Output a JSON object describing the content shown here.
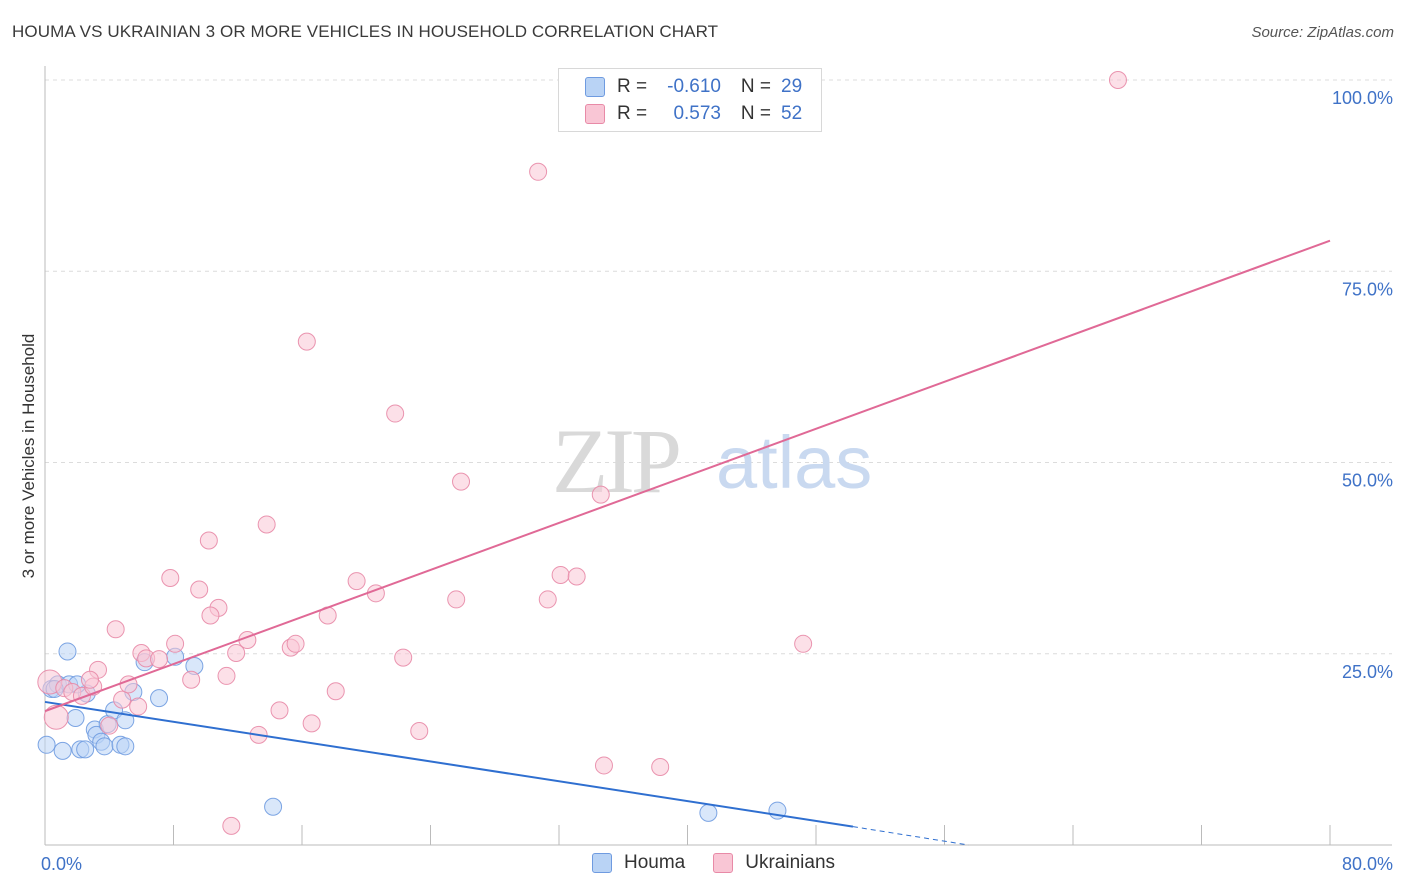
{
  "title": "HOUMA VS UKRAINIAN 3 OR MORE VEHICLES IN HOUSEHOLD CORRELATION CHART",
  "source": "Source: ZipAtlas.com",
  "watermark": {
    "zip": "ZIP",
    "atlas": "atlas"
  },
  "legend_top": {
    "rows": [
      {
        "label": "R =",
        "r": "-0.610",
        "n_label": "N =",
        "n": "29",
        "color": "#b9d3f5",
        "border": "#6f9be0"
      },
      {
        "label": "R =",
        "r": "0.573",
        "n_label": "N =",
        "n": "52",
        "color": "#f9c6d5",
        "border": "#e88aa7"
      }
    ]
  },
  "legend_bottom": [
    {
      "name": "Houma",
      "color": "#b9d3f5",
      "border": "#6f9be0"
    },
    {
      "name": "Ukrainians",
      "color": "#f9c6d5",
      "border": "#e88aa7"
    }
  ],
  "chart_data": {
    "type": "scatter",
    "title": "HOUMA VS UKRAINIAN 3 OR MORE VEHICLES IN HOUSEHOLD CORRELATION CHART",
    "xlabel": "",
    "ylabel": "3 or more Vehicles in Household",
    "xlim": [
      0,
      80
    ],
    "ylim": [
      0,
      100
    ],
    "x_tick_labels": [
      "0.0%",
      "80.0%"
    ],
    "y_tick_labels": [
      {
        "value": 25,
        "label": "25.0%"
      },
      {
        "value": 50,
        "label": "50.0%"
      },
      {
        "value": 75,
        "label": "75.0%"
      },
      {
        "value": 100,
        "label": "100.0%"
      }
    ],
    "grid": true,
    "series": [
      {
        "name": "Houma",
        "color": "#6f9be0",
        "fill": "#b9d3f5",
        "line_color": "#2f6fd0",
        "trend": {
          "x0": 0,
          "y0": 18.7,
          "x1": 50.3,
          "y1": 2.4,
          "dash_to_x": 57.5,
          "dash_to_y": 0
        },
        "points": [
          [
            0.1,
            13.1
          ],
          [
            0.4,
            20.4
          ],
          [
            0.8,
            21.0
          ],
          [
            1.1,
            12.3
          ],
          [
            1.4,
            25.3
          ],
          [
            1.5,
            21.0
          ],
          [
            1.9,
            16.6
          ],
          [
            2.2,
            12.5
          ],
          [
            2.6,
            19.8
          ],
          [
            3.1,
            15.1
          ],
          [
            3.2,
            14.4
          ],
          [
            3.5,
            13.5
          ],
          [
            3.7,
            12.9
          ],
          [
            3.9,
            15.8
          ],
          [
            4.3,
            17.6
          ],
          [
            4.7,
            13.1
          ],
          [
            5.0,
            16.3
          ],
          [
            5.5,
            20.0
          ],
          [
            6.2,
            23.9
          ],
          [
            7.1,
            19.2
          ],
          [
            8.1,
            24.6
          ],
          [
            9.3,
            23.4
          ],
          [
            14.2,
            5.0
          ],
          [
            41.3,
            4.2
          ],
          [
            45.6,
            4.5
          ],
          [
            2.0,
            21.0
          ],
          [
            0.6,
            20.4
          ],
          [
            2.5,
            12.5
          ],
          [
            5.0,
            12.9
          ]
        ]
      },
      {
        "name": "Ukrainians",
        "color": "#e88aa7",
        "fill": "#f9c6d5",
        "line_color": "#e06996",
        "trend": {
          "x0": 0,
          "y0": 17.5,
          "x1": 80,
          "y1": 79.0
        },
        "points": [
          [
            0.3,
            21.3
          ],
          [
            0.7,
            16.7
          ],
          [
            1.2,
            20.5
          ],
          [
            1.7,
            20.0
          ],
          [
            2.3,
            19.5
          ],
          [
            3.0,
            20.7
          ],
          [
            3.3,
            22.9
          ],
          [
            4.0,
            15.6
          ],
          [
            4.4,
            28.2
          ],
          [
            4.8,
            19.0
          ],
          [
            5.2,
            21.0
          ],
          [
            5.8,
            18.1
          ],
          [
            6.0,
            25.1
          ],
          [
            6.3,
            24.4
          ],
          [
            7.1,
            24.3
          ],
          [
            7.8,
            34.9
          ],
          [
            9.1,
            21.6
          ],
          [
            9.6,
            33.4
          ],
          [
            10.2,
            39.8
          ],
          [
            10.8,
            31.0
          ],
          [
            11.3,
            22.1
          ],
          [
            11.9,
            25.1
          ],
          [
            12.6,
            26.8
          ],
          [
            13.3,
            14.4
          ],
          [
            13.8,
            41.9
          ],
          [
            14.6,
            17.6
          ],
          [
            15.3,
            25.8
          ],
          [
            15.6,
            26.3
          ],
          [
            16.3,
            65.8
          ],
          [
            16.6,
            15.9
          ],
          [
            17.6,
            30.0
          ],
          [
            18.1,
            20.1
          ],
          [
            19.4,
            34.5
          ],
          [
            20.6,
            32.9
          ],
          [
            21.8,
            56.4
          ],
          [
            22.3,
            24.5
          ],
          [
            23.3,
            14.9
          ],
          [
            25.6,
            32.1
          ],
          [
            25.9,
            47.5
          ],
          [
            30.7,
            88.0
          ],
          [
            31.3,
            32.1
          ],
          [
            32.1,
            35.3
          ],
          [
            33.1,
            35.1
          ],
          [
            34.6,
            45.8
          ],
          [
            34.8,
            10.4
          ],
          [
            38.3,
            10.2
          ],
          [
            47.2,
            26.3
          ],
          [
            66.8,
            100.0
          ],
          [
            11.6,
            2.5
          ],
          [
            10.3,
            30.0
          ],
          [
            8.1,
            26.3
          ],
          [
            2.8,
            21.6
          ]
        ]
      }
    ]
  }
}
